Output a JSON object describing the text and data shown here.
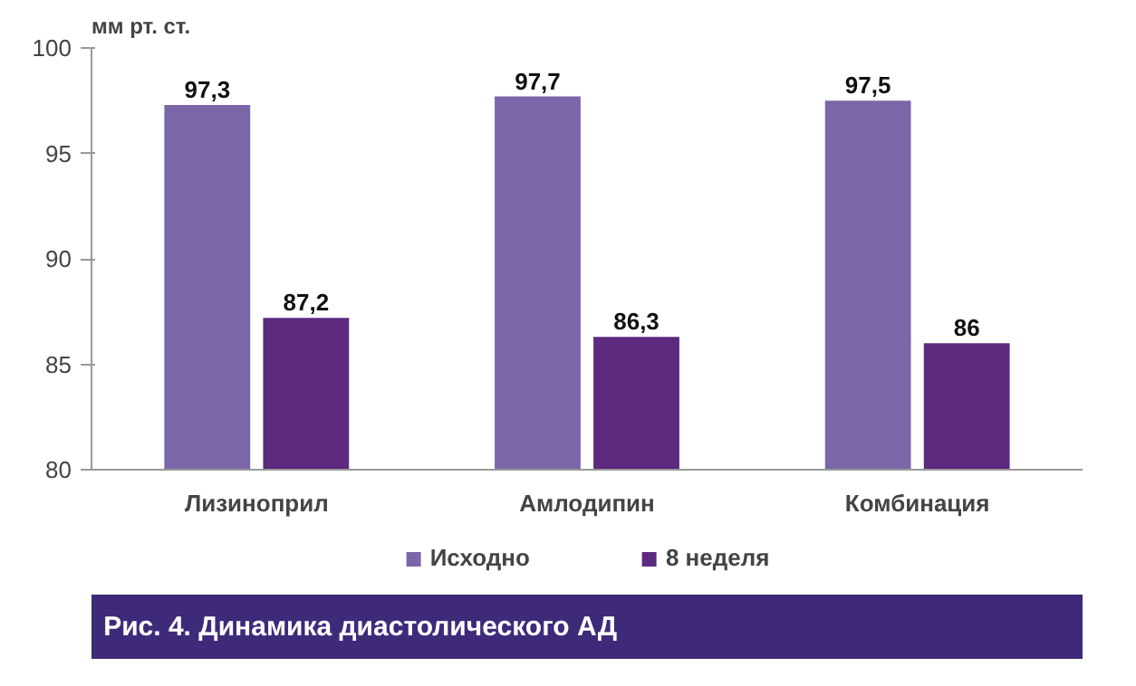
{
  "chart_data": {
    "type": "bar",
    "title": "Рис. 4. Динамика диастолического АД",
    "ylabel": "мм рт. ст.",
    "categories": [
      "Лизиноприл",
      "Амлодипин",
      "Комбинация"
    ],
    "series": [
      {
        "name": "Исходно",
        "color": "#7b66a8",
        "values": [
          97.3,
          97.7,
          97.5
        ],
        "value_labels": [
          "97,3",
          "97,7",
          "97,5"
        ]
      },
      {
        "name": "8 неделя",
        "color": "#5c2a7e",
        "values": [
          87.2,
          86.3,
          86
        ],
        "value_labels": [
          "87,2",
          "86,3",
          "86"
        ]
      }
    ],
    "ylim": [
      80,
      100
    ],
    "yticks": [
      80,
      85,
      90,
      95,
      100
    ],
    "grid": false,
    "legend": "bottom"
  }
}
